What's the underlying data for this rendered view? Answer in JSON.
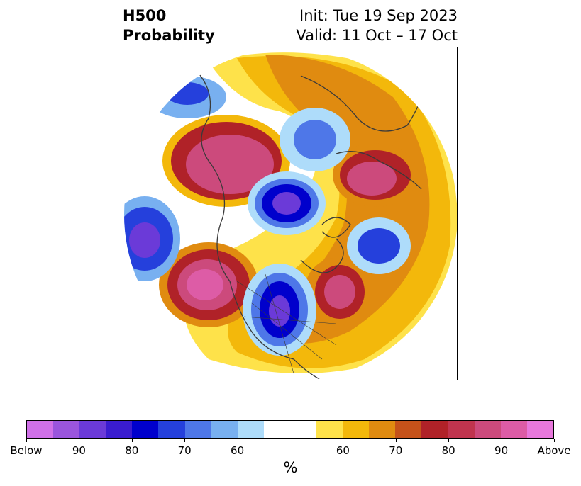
{
  "header": {
    "variable": "H500",
    "product": "Probability",
    "init": "Init: Tue 19 Sep 2023",
    "valid": "Valid: 11 Oct – 17 Oct"
  },
  "colorbar": {
    "unit": "%",
    "labels": [
      "Below",
      "90",
      "80",
      "70",
      "60",
      "60",
      "70",
      "80",
      "90",
      "Above"
    ],
    "below_colors": [
      "#d070e8",
      "#9a55dd",
      "#6b3ad8",
      "#3a1cd0",
      "#0000cc",
      "#2540dc",
      "#4e77e8",
      "#78b0f0",
      "#aedcfa"
    ],
    "neutral_color": "#ffffff",
    "above_colors": [
      "#fee24a",
      "#f3b80b",
      "#e08b10",
      "#c5521a",
      "#b02228",
      "#c0344e",
      "#cc4a7c",
      "#dd5ca6",
      "#e878dc"
    ]
  },
  "map": {
    "projection": "polar-stereographic",
    "region": "Northern Hemisphere / North America"
  }
}
